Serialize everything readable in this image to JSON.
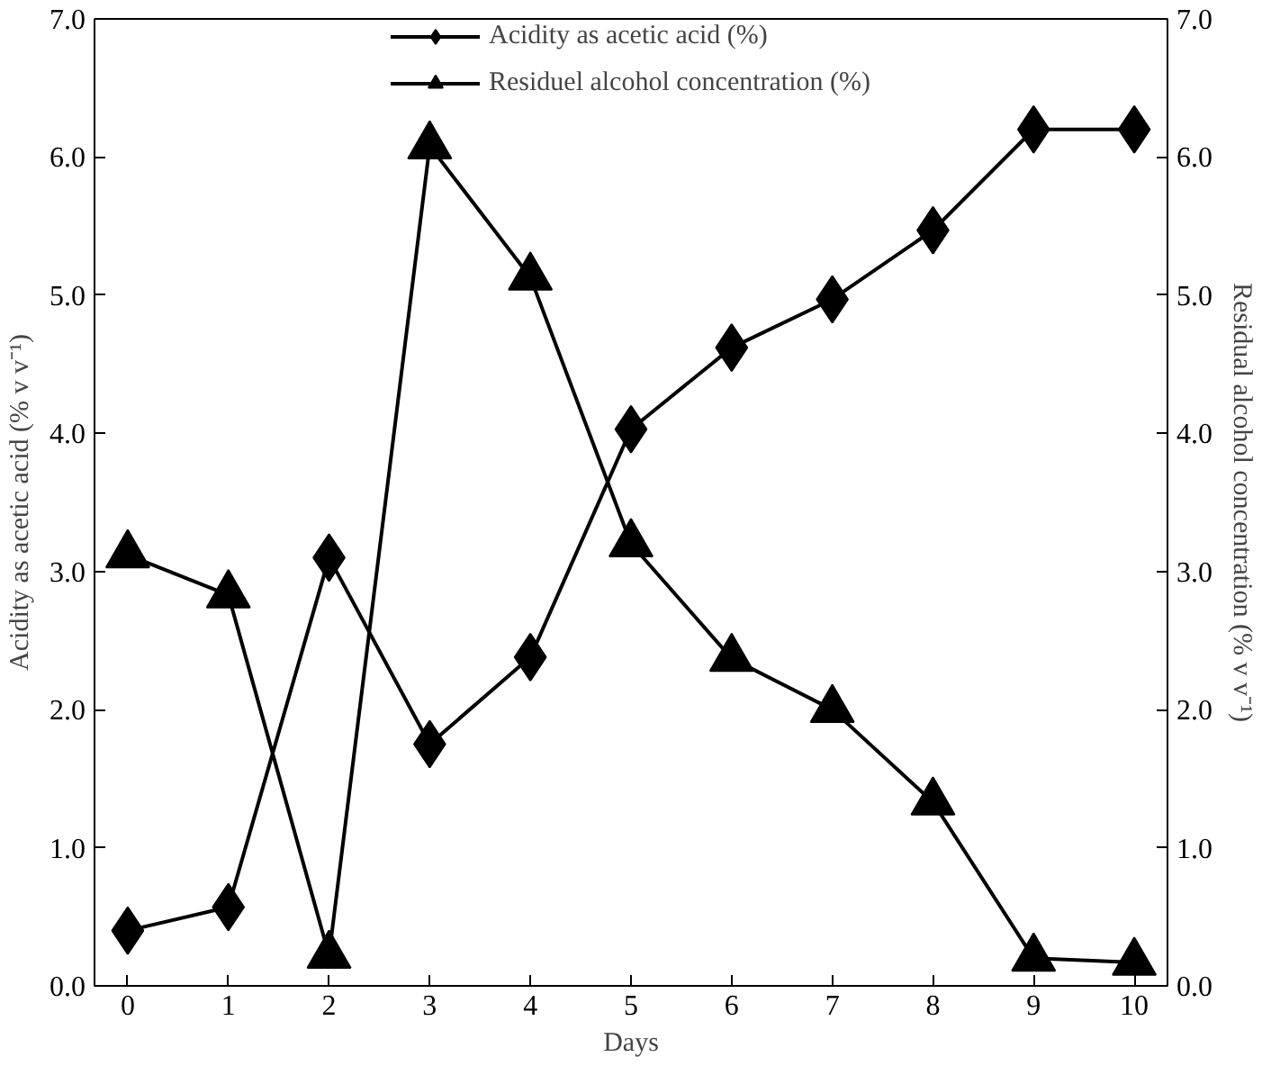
{
  "chart_data": {
    "type": "line",
    "xlabel": "Days",
    "ylabel": "Acidity as acetic acid (% v v⁻¹)",
    "y2label": "Residual alcohol concentration (% v v⁻¹)",
    "x": [
      0,
      1,
      2,
      3,
      4,
      5,
      6,
      7,
      8,
      9,
      10
    ],
    "series": [
      {
        "name": "Acidity as acetic acid (%)",
        "color": "#000000",
        "marker": "diamond",
        "values": [
          0.4,
          0.57,
          3.1,
          1.75,
          2.38,
          4.03,
          4.62,
          4.97,
          5.47,
          6.2,
          6.2
        ]
      },
      {
        "name": "Residuel alcohol concentration (%)",
        "color": "#000000",
        "marker": "triangle",
        "axis": "y2",
        "values": [
          3.12,
          2.83,
          0.22,
          6.08,
          5.13,
          3.2,
          2.37,
          2.0,
          1.33,
          0.2,
          0.17
        ]
      }
    ],
    "xlim": [
      -0.33,
      10.33
    ],
    "xticks": [
      0,
      1,
      2,
      3,
      4,
      5,
      6,
      7,
      8,
      9,
      10
    ],
    "ylim": [
      0,
      7
    ],
    "yticks": [
      {
        "value": 0,
        "label": "0.0"
      },
      {
        "value": 1,
        "label": "1.0"
      },
      {
        "value": 2,
        "label": "2.0"
      },
      {
        "value": 3,
        "label": "3.0"
      },
      {
        "value": 4,
        "label": "4.0"
      },
      {
        "value": 5,
        "label": "5.0"
      },
      {
        "value": 6,
        "label": "6.0"
      },
      {
        "value": 7,
        "label": "7.0"
      }
    ],
    "y2lim": [
      0,
      7
    ],
    "y2ticks": [
      {
        "value": 0,
        "label": "0.0"
      },
      {
        "value": 1,
        "label": "1.0"
      },
      {
        "value": 2,
        "label": "2.0"
      },
      {
        "value": 3,
        "label": "3.0"
      },
      {
        "value": 4,
        "label": "4.0"
      },
      {
        "value": 5,
        "label": "5.0"
      },
      {
        "value": 6,
        "label": "6.0"
      },
      {
        "value": 7,
        "label": "7.0"
      }
    ],
    "grid": false,
    "legend": "top",
    "line_style": "solid"
  }
}
